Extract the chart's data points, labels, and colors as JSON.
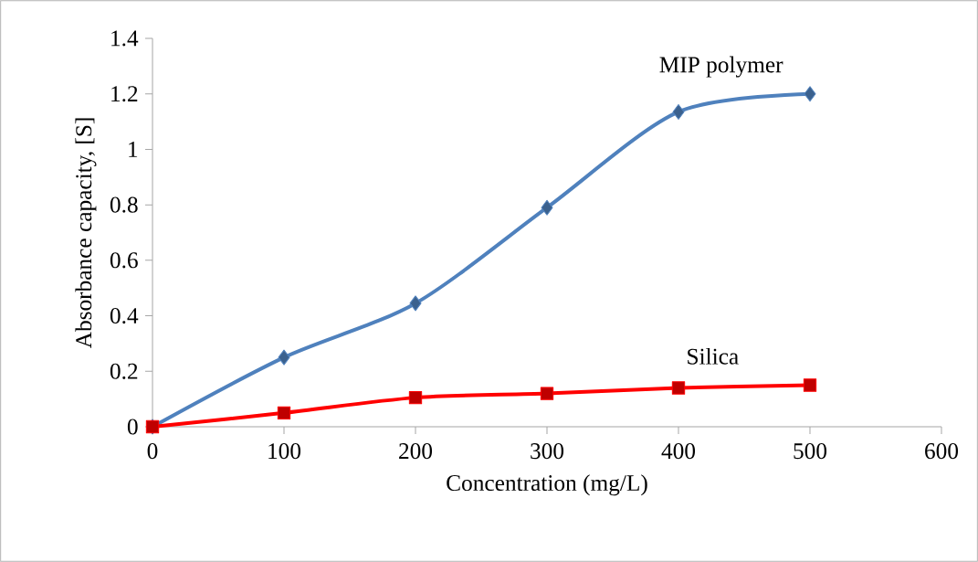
{
  "chart_data": {
    "type": "line",
    "xlabel": "Concentration (mg/L)",
    "ylabel": "Absorbance capacity, [S]",
    "x": [
      0,
      100,
      200,
      300,
      400,
      500
    ],
    "series": [
      {
        "name": "MIP polymer",
        "color": "#4f81bd",
        "marker": "diamond",
        "values": [
          0,
          0.25,
          0.445,
          0.79,
          1.135,
          1.2
        ]
      },
      {
        "name": "Silica",
        "color": "#ff0000",
        "marker": "square",
        "values": [
          0,
          0.05,
          0.105,
          0.12,
          0.14,
          0.15
        ]
      }
    ],
    "xlim": [
      0,
      600
    ],
    "xticks": [
      0,
      100,
      200,
      300,
      400,
      500,
      600
    ],
    "ylim": [
      0,
      1.4
    ],
    "yticks": [
      0,
      0.2,
      0.4,
      0.6,
      0.8,
      1,
      1.2,
      1.4
    ],
    "grid": false,
    "legend": false,
    "line_style": "solid"
  }
}
